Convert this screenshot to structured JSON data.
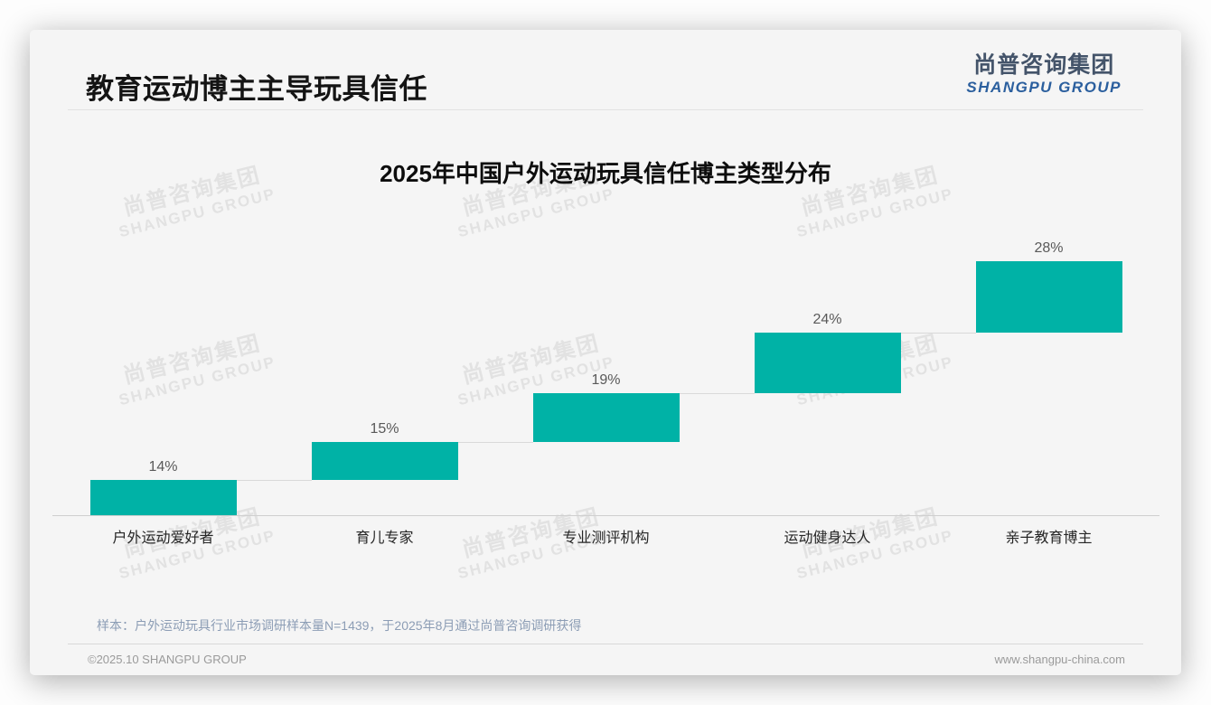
{
  "page": {
    "header": {
      "title": "教育运动博主主导玩具信任"
    },
    "logo": {
      "cn": "尚普咨询集团",
      "en": "SHANGPU GROUP"
    },
    "watermark": {
      "cn": "尚普咨询集团",
      "en": "SHANGPU GROUP"
    },
    "footer": {
      "sample_note": "样本：户外运动玩具行业市场调研样本量N=1439，于2025年8月通过尚普咨询调研获得",
      "copyright": "©2025.10 SHANGPU GROUP",
      "website": "www.shangpu-china.com"
    }
  },
  "chart_data": {
    "type": "bar",
    "subtype": "waterfall-steps",
    "title": "2025年中国户外运动玩具信任博主类型分布",
    "categories": [
      "户外运动爱好者",
      "育儿专家",
      "专业测评机构",
      "运动健身达人",
      "亲子教育博主"
    ],
    "values": [
      14,
      15,
      19,
      24,
      28
    ],
    "value_labels": [
      "14%",
      "15%",
      "19%",
      "24%",
      "28%"
    ],
    "xlabel": "",
    "ylabel": "",
    "ylim": [
      0,
      100
    ],
    "grid": false,
    "legend": false,
    "bar_color": "#00b2a6",
    "connector_color": "#d9d9d9",
    "axis_color": "#cfcfcf",
    "value_label_color": "#595959",
    "category_label_color": "#262626"
  }
}
